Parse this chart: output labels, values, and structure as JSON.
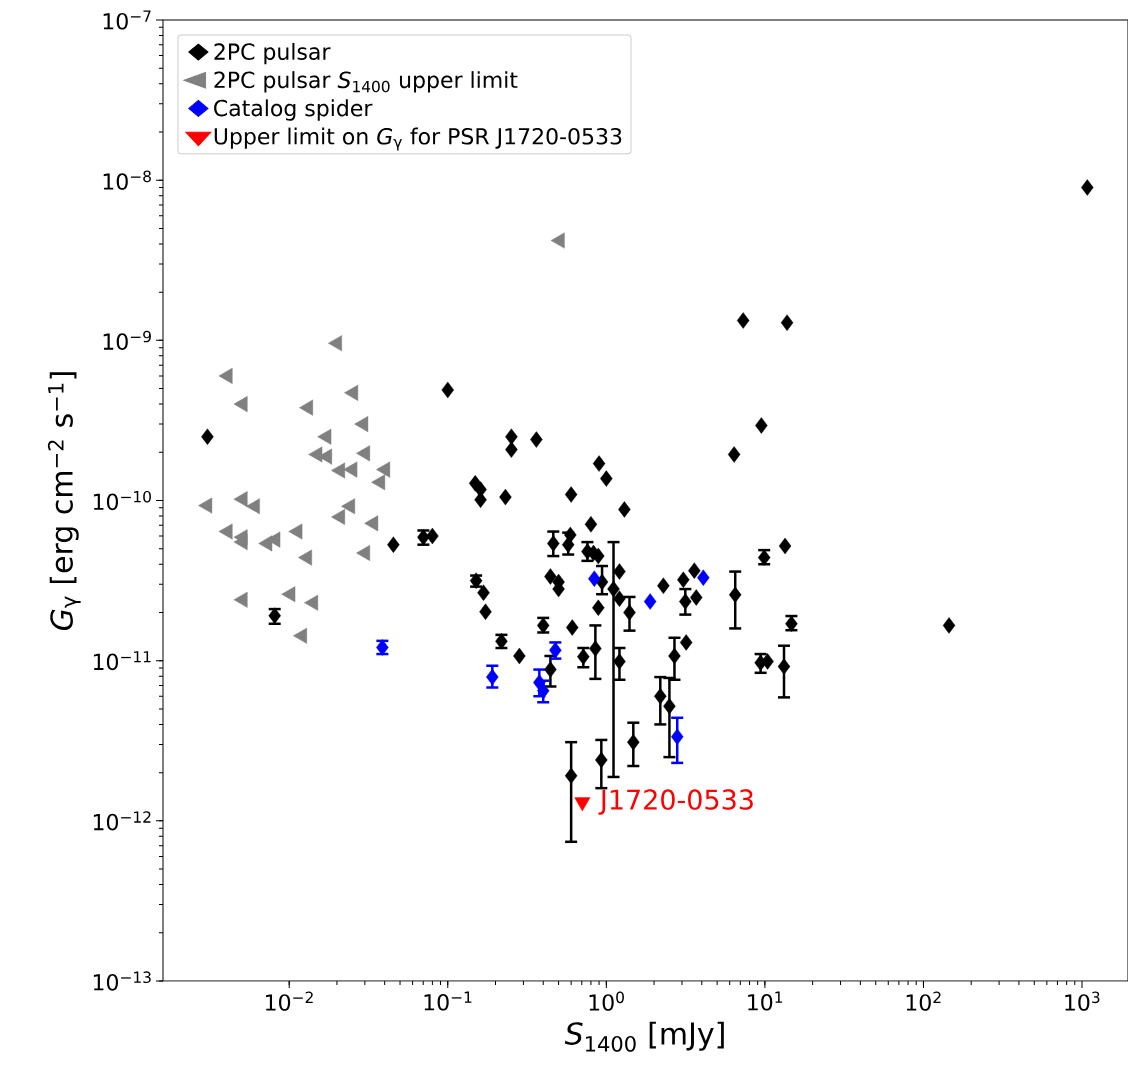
{
  "chart_data": {
    "type": "scatter",
    "xlabel": "*S*$_{1400}$ [mJy]",
    "ylabel": "*G*$_{γ}$  [erg cm$^{−2}$ s$^{−1}$]",
    "log": "xy",
    "legend": "top left",
    "xlim": [
      0.0016,
      1950
    ],
    "ylim": [
      1e-13,
      1e-07
    ],
    "xticks": [
      {
        "value": 0.01,
        "label": "10$^{−2}$"
      },
      {
        "value": 0.1,
        "label": "10$^{−1}$"
      },
      {
        "value": 1,
        "label": "10$^{0}$"
      },
      {
        "value": 10,
        "label": "10$^{1}$"
      },
      {
        "value": 100,
        "label": "10$^{2}$"
      },
      {
        "value": 1000,
        "label": "10$^{3}$"
      }
    ],
    "yticks": [
      {
        "value": 1e-13,
        "label": "10$^{−13}$"
      },
      {
        "value": 1e-12,
        "label": "10$^{−12}$"
      },
      {
        "value": 1e-11,
        "label": "10$^{−11}$"
      },
      {
        "value": 1e-10,
        "label": "10$^{−10}$"
      },
      {
        "value": 1e-09,
        "label": "10$^{−9}$"
      },
      {
        "value": 1e-08,
        "label": "10$^{−8}$"
      },
      {
        "value": 1e-07,
        "label": "10$^{−7}$"
      }
    ],
    "annotations": [
      "J1720-0533"
    ],
    "series": [
      {
        "name": "2PC pulsar",
        "color": "#000000",
        "marker": "diamond",
        "x": [
          0.00305,
          0.0081,
          0.0454,
          0.0702,
          0.08,
          0.1,
          0.252,
          0.252,
          0.362,
          0.9,
          1.0,
          0.149,
          0.161,
          0.161,
          0.231,
          0.6,
          1.3,
          0.8,
          0.463,
          0.593,
          0.575,
          0.76,
          0.83,
          0.89,
          0.151,
          0.168,
          0.173,
          0.444,
          0.5,
          0.5,
          0.94,
          1.11,
          1.21,
          1.21,
          0.89,
          1.4,
          2.29,
          3.06,
          3.59,
          3.15,
          3.69,
          6.5,
          6.4,
          9.5,
          9.9,
          0.4,
          0.61,
          0.218,
          0.283,
          3.19,
          0.716,
          0.444,
          0.853,
          1.21,
          2.19,
          2.5,
          2.69,
          1.48,
          0.93,
          0.6,
          9.4,
          10.4,
          13.2,
          14.7,
          13.4,
          7.3,
          13.8,
          1080,
          145
        ],
        "values": [
          2.5e-10,
          1.91e-11,
          5.3e-11,
          5.9e-11,
          6e-11,
          4.9e-10,
          2.5e-10,
          2.08e-10,
          2.4e-10,
          1.7e-10,
          1.37e-10,
          1.28e-10,
          1.17e-10,
          1.01e-10,
          1.05e-10,
          1.09e-10,
          8.8e-11,
          7.1e-11,
          5.4e-11,
          6.1e-11,
          5.3e-11,
          4.8e-11,
          4.7e-11,
          4.5e-11,
          3.16e-11,
          2.66e-11,
          2.02e-11,
          3.35e-11,
          3.1e-11,
          2.8e-11,
          3.1e-11,
          2.8e-11,
          3.6e-11,
          2.44e-11,
          2.14e-11,
          2e-11,
          2.94e-11,
          3.2e-11,
          3.65e-11,
          2.34e-11,
          2.48e-11,
          2.58e-11,
          1.94e-10,
          2.94e-10,
          4.4e-11,
          1.66e-11,
          1.61e-11,
          1.32e-11,
          1.07e-11,
          1.3e-11,
          1.06e-11,
          8.8e-12,
          1.19e-11,
          9.9e-12,
          6e-12,
          5.2e-12,
          1.07e-11,
          3.1e-12,
          2.4e-12,
          1.91e-12,
          9.7e-12,
          9.9e-12,
          9.2e-12,
          1.7e-11,
          5.2e-11,
          1.33e-09,
          1.29e-09,
          9e-09,
          1.66e-11
        ],
        "errors": [
          null,
          [
            1.7e-11,
            2.1e-11
          ],
          null,
          [
            5.3e-11,
            6.5e-11
          ],
          null,
          null,
          null,
          null,
          null,
          null,
          null,
          null,
          null,
          null,
          null,
          null,
          null,
          null,
          [
            4.5e-11,
            6.4e-11
          ],
          null,
          [
            4.6e-11,
            6.3e-11
          ],
          [
            4.2e-11,
            5.5e-11
          ],
          null,
          null,
          [
            2.9e-11,
            3.4e-11
          ],
          null,
          null,
          null,
          null,
          null,
          [
            2.6e-11,
            3.9e-11
          ],
          [
            1.88e-12,
            5.5e-11
          ],
          null,
          null,
          null,
          [
            1.54e-11,
            2.5e-11
          ],
          null,
          null,
          null,
          [
            1.94e-11,
            2.8e-11
          ],
          null,
          [
            1.59e-11,
            3.6e-11
          ],
          null,
          null,
          [
            4e-11,
            4.9e-11
          ],
          [
            1.5e-11,
            1.85e-11
          ],
          null,
          [
            1.2e-11,
            1.45e-11
          ],
          null,
          null,
          [
            9.1e-12,
            1.2e-11
          ],
          [
            6.9e-12,
            1.07e-11
          ],
          [
            7.7e-12,
            1.66e-11
          ],
          [
            7.6e-12,
            1.2e-11
          ],
          [
            4e-12,
            7.9e-12
          ],
          [
            2.5e-12,
            7.8e-12
          ],
          [
            7.6e-12,
            1.39e-11
          ],
          [
            2.2e-12,
            4.1e-12
          ],
          [
            1.6e-12,
            3.2e-12
          ],
          [
            7.4e-13,
            3.1e-12
          ],
          [
            8.4e-12,
            1.1e-11
          ],
          null,
          [
            5.9e-12,
            1.24e-11
          ],
          [
            1.55e-11,
            1.9e-11
          ],
          null,
          null,
          null,
          null,
          null
        ]
      },
      {
        "name": "2PC pulsar *S*$_{1400}$ upper limit",
        "color": "#808080",
        "marker": "triangle",
        "x": [
          0.0201,
          0.0041,
          0.0051,
          0.0132,
          0.0254,
          0.0294,
          0.0172,
          0.0151,
          0.0174,
          0.0302,
          0.021,
          0.0251,
          0.0404,
          0.0376,
          0.00305,
          0.0051,
          0.0061,
          0.0243,
          0.021,
          0.034,
          0.0041,
          0.0051,
          0.0051,
          0.0073,
          0.0082,
          0.0113,
          0.0302,
          0.013,
          0.0051,
          0.0102,
          0.0142,
          0.0121,
          0.51
        ],
        "values": [
          9.6e-10,
          6e-10,
          4e-10,
          3.8e-10,
          4.7e-10,
          3e-10,
          2.5e-10,
          1.94e-10,
          1.88e-10,
          1.97e-10,
          1.54e-10,
          1.56e-10,
          1.56e-10,
          1.3e-10,
          9.3e-11,
          1.02e-10,
          9.2e-11,
          9.2e-11,
          7.9e-11,
          7.2e-11,
          6.4e-11,
          5.9e-11,
          5.5e-11,
          5.4e-11,
          5.7e-11,
          6.4e-11,
          4.7e-11,
          4.4e-11,
          2.4e-11,
          2.6e-11,
          2.3e-11,
          1.43e-11,
          4.2e-09
        ]
      },
      {
        "name": "Catalog spider",
        "color": "#0000ff",
        "marker": "diamond",
        "x": [
          0.0387,
          0.191,
          0.378,
          0.4,
          0.477,
          2.8,
          0.84,
          1.89,
          4.09
        ],
        "values": [
          1.21e-11,
          7.9e-12,
          7.3e-12,
          6.5e-12,
          1.16e-11,
          3.35e-12,
          3.25e-11,
          2.34e-11,
          3.3e-11
        ],
        "errors": [
          [
            1.1e-11,
            1.33e-11
          ],
          [
            6.8e-12,
            9.3e-12
          ],
          [
            6e-12,
            8.8e-12
          ],
          [
            5.5e-12,
            7.5e-12
          ],
          [
            1.03e-11,
            1.3e-11
          ],
          [
            2.3e-12,
            4.4e-12
          ],
          null,
          null,
          null
        ]
      },
      {
        "name": "Upper limit on *G*$_{γ}$ for PSR J1720-0533",
        "color": "#ff0000",
        "marker": "triangle",
        "x": [
          0.706
        ],
        "values": [
          1.31e-12
        ]
      }
    ]
  }
}
